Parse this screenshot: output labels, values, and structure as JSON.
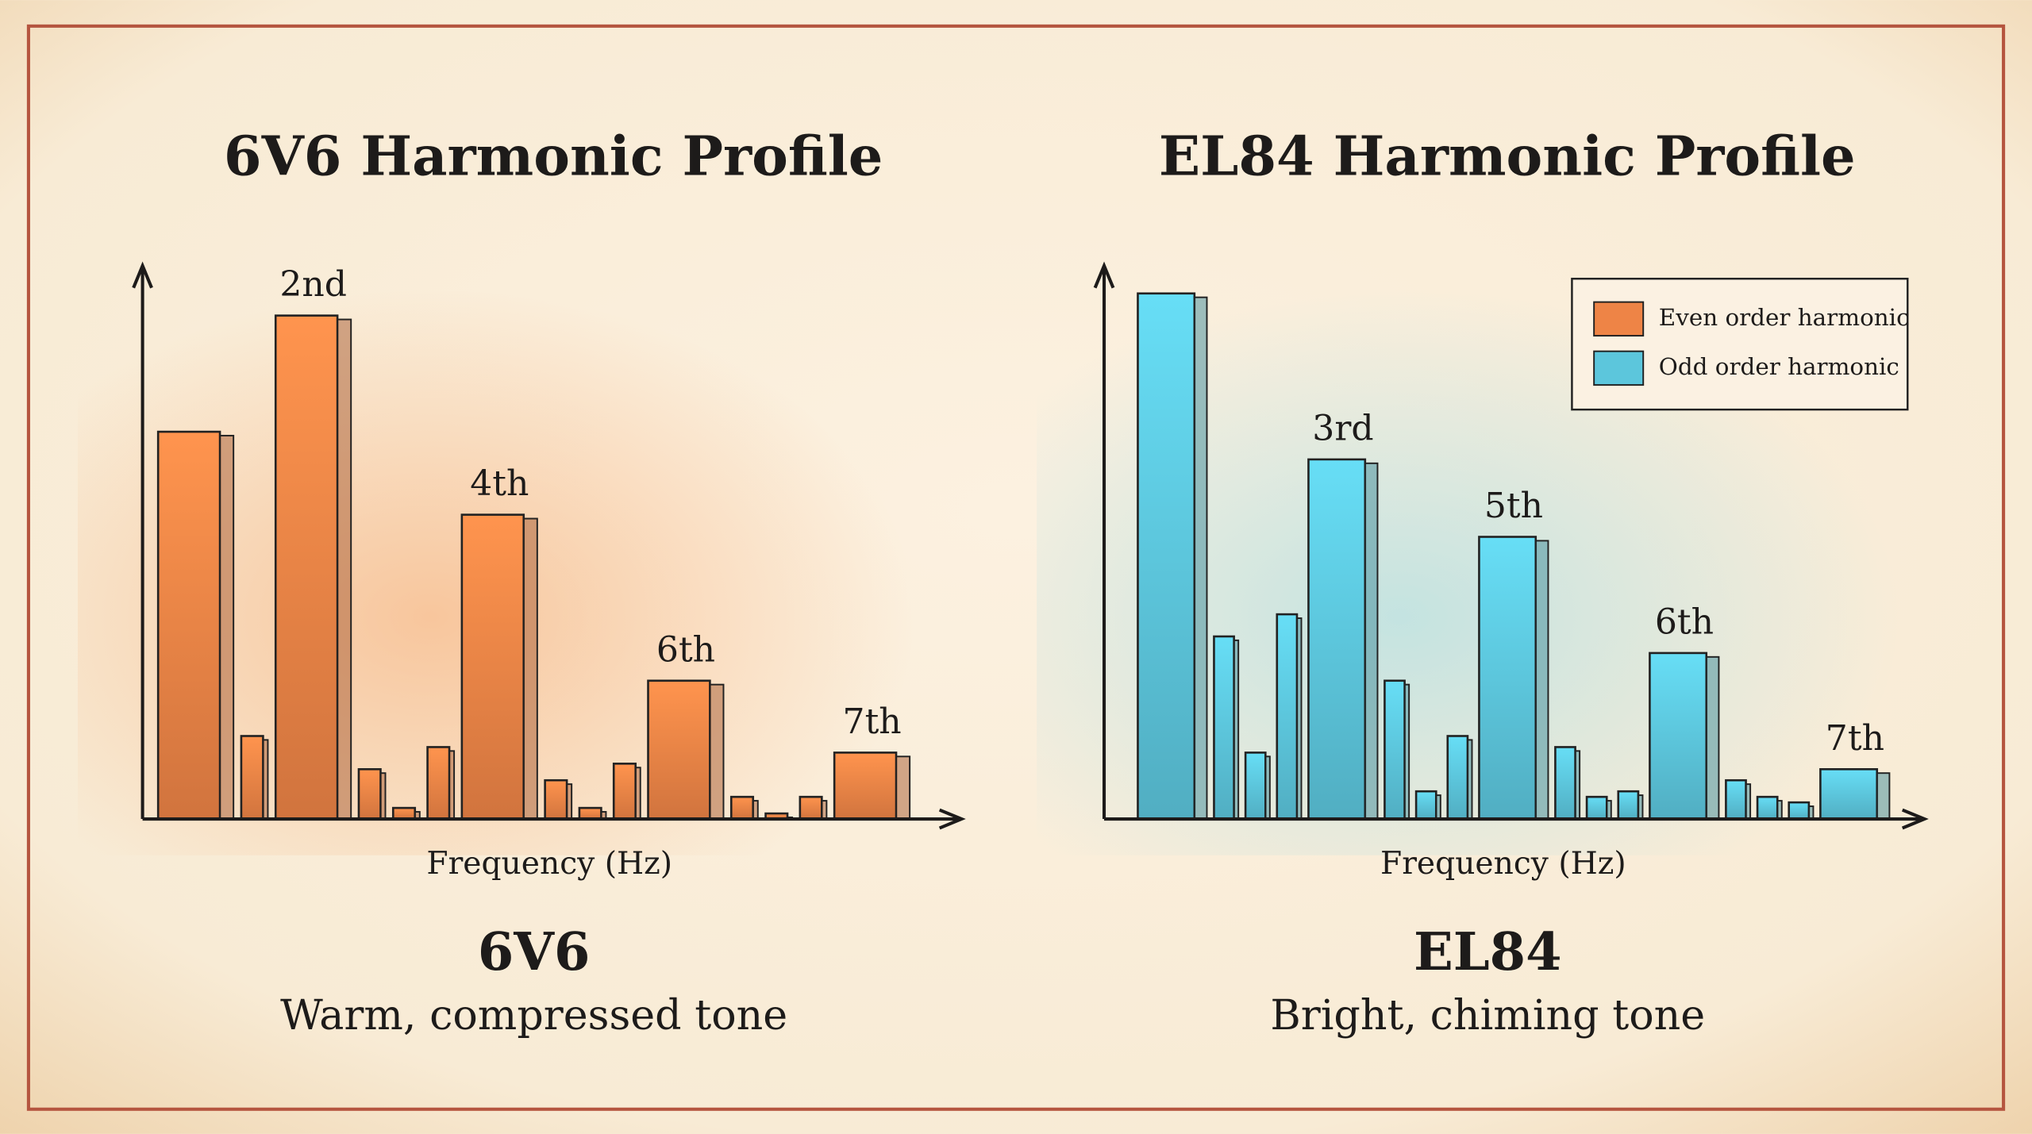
{
  "chart_data": [
    {
      "type": "bar",
      "title": "6V6 Harmonic Profile",
      "categories": [
        null,
        null,
        "2nd",
        null,
        null,
        null,
        "4th",
        null,
        null,
        null,
        "6th",
        null,
        null,
        null,
        "7th"
      ],
      "values": [
        70,
        15,
        91,
        9,
        2,
        13,
        55,
        7,
        2,
        10,
        25,
        4,
        1,
        4,
        12
      ],
      "color": "#ee8446",
      "ylim": [
        0,
        100
      ],
      "x_label": "Frequency (Hz)",
      "caption_title": "6V6",
      "caption": "Warm, compressed tone"
    },
    {
      "type": "bar",
      "title": "EL84 Harmonic Profile",
      "categories": [
        null,
        null,
        null,
        null,
        "3rd",
        null,
        null,
        null,
        "5th",
        null,
        null,
        null,
        "6th",
        null,
        null,
        null,
        "7th"
      ],
      "values": [
        95,
        33,
        12,
        37,
        65,
        25,
        5,
        15,
        51,
        13,
        4,
        5,
        30,
        7,
        4,
        3,
        9
      ],
      "color": "#5cc6dc",
      "ylim": [
        0,
        100
      ],
      "x_label": "Frequency (Hz)",
      "caption_title": "EL84",
      "caption": "Bright, chiming tone",
      "legend": [
        {
          "name": "Even order harmonic",
          "color": "#ee8446"
        },
        {
          "name": "Odd order harmonic",
          "color": "#5cc6dc"
        }
      ]
    }
  ]
}
